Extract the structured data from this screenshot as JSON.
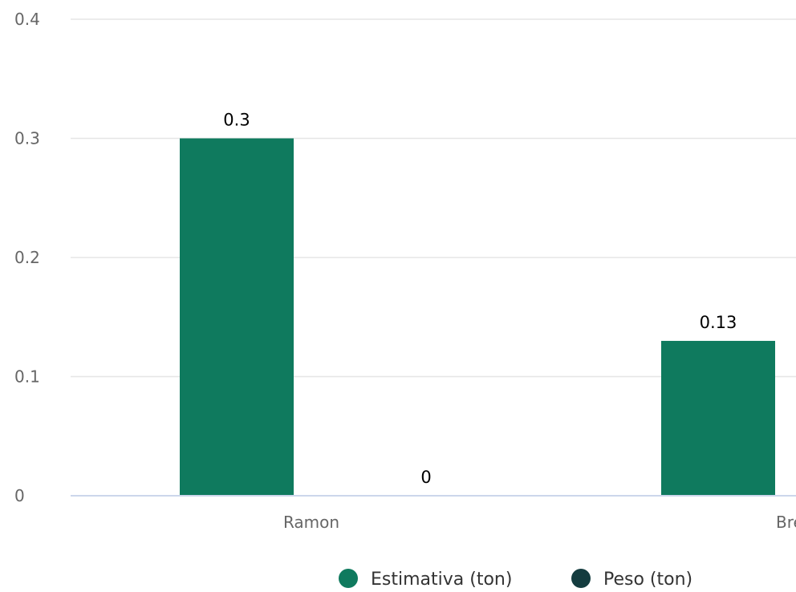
{
  "chart_data": {
    "type": "bar",
    "categories": [
      "Ramon",
      "Brer"
    ],
    "series": [
      {
        "name": "Estimativa (ton)",
        "color": "#0f7a5e",
        "values": [
          0.3,
          0.13
        ]
      },
      {
        "name": "Peso (ton)",
        "color": "#143c3f",
        "values": [
          0,
          null
        ]
      }
    ],
    "data_labels": [
      [
        "0.3",
        "0.13"
      ],
      [
        "0",
        ""
      ]
    ],
    "y_ticks": [
      "0",
      "0.1",
      "0.2",
      "0.3",
      "0.4"
    ],
    "ylim": [
      0,
      0.4
    ],
    "grid": true,
    "legend_position": "bottom-center"
  }
}
